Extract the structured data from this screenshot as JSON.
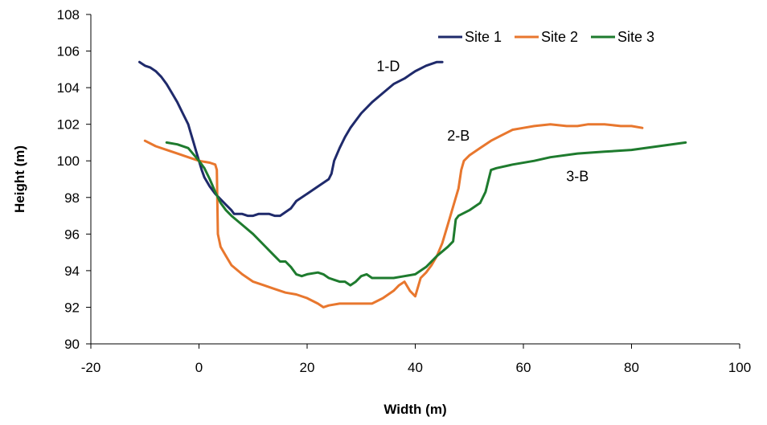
{
  "chart_data": {
    "type": "line",
    "title": "",
    "xlabel": "Width (m)",
    "ylabel": "Height (m)",
    "xlim": [
      -20,
      100
    ],
    "ylim": [
      90,
      108
    ],
    "xticks": [
      -20,
      0,
      20,
      40,
      60,
      80,
      100
    ],
    "yticks": [
      90,
      92,
      94,
      96,
      98,
      100,
      102,
      104,
      106,
      108
    ],
    "grid": false,
    "legend_position": "top-right",
    "series": [
      {
        "name": "Site 1",
        "color": "#1F2A6B",
        "points": [
          [
            -11,
            105.4
          ],
          [
            -10,
            105.2
          ],
          [
            -9,
            105.1
          ],
          [
            -8,
            104.9
          ],
          [
            -7,
            104.6
          ],
          [
            -6,
            104.2
          ],
          [
            -5,
            103.7
          ],
          [
            -4,
            103.2
          ],
          [
            -3,
            102.6
          ],
          [
            -2,
            102.0
          ],
          [
            -1.5,
            101.5
          ],
          [
            -1,
            101.0
          ],
          [
            -0.5,
            100.5
          ],
          [
            0,
            100.0
          ],
          [
            0.5,
            99.5
          ],
          [
            1,
            99.1
          ],
          [
            2,
            98.6
          ],
          [
            3,
            98.2
          ],
          [
            4,
            97.9
          ],
          [
            5,
            97.6
          ],
          [
            6,
            97.3
          ],
          [
            6.5,
            97.1
          ],
          [
            8,
            97.1
          ],
          [
            9,
            97.0
          ],
          [
            10,
            97.0
          ],
          [
            11,
            97.1
          ],
          [
            12,
            97.1
          ],
          [
            13,
            97.1
          ],
          [
            14,
            97.0
          ],
          [
            15,
            97.0
          ],
          [
            16,
            97.2
          ],
          [
            17,
            97.4
          ],
          [
            18,
            97.8
          ],
          [
            20,
            98.2
          ],
          [
            22,
            98.6
          ],
          [
            24,
            99.0
          ],
          [
            24.5,
            99.3
          ],
          [
            25,
            100.0
          ],
          [
            26,
            100.7
          ],
          [
            27,
            101.3
          ],
          [
            28,
            101.8
          ],
          [
            29,
            102.2
          ],
          [
            30,
            102.6
          ],
          [
            32,
            103.2
          ],
          [
            34,
            103.7
          ],
          [
            36,
            104.2
          ],
          [
            38,
            104.5
          ],
          [
            40,
            104.9
          ],
          [
            42,
            105.2
          ],
          [
            44,
            105.4
          ],
          [
            45,
            105.4
          ]
        ]
      },
      {
        "name": "Site 2",
        "color": "#E8772E",
        "points": [
          [
            -10,
            101.1
          ],
          [
            -8,
            100.8
          ],
          [
            -6,
            100.6
          ],
          [
            -4,
            100.4
          ],
          [
            -2,
            100.2
          ],
          [
            0,
            100.0
          ],
          [
            2,
            99.9
          ],
          [
            3,
            99.8
          ],
          [
            3.3,
            99.5
          ],
          [
            3.5,
            96.0
          ],
          [
            4,
            95.3
          ],
          [
            5,
            94.8
          ],
          [
            6,
            94.3
          ],
          [
            8,
            93.8
          ],
          [
            10,
            93.4
          ],
          [
            12,
            93.2
          ],
          [
            14,
            93.0
          ],
          [
            16,
            92.8
          ],
          [
            18,
            92.7
          ],
          [
            20,
            92.5
          ],
          [
            22,
            92.2
          ],
          [
            23,
            92.0
          ],
          [
            24,
            92.1
          ],
          [
            26,
            92.2
          ],
          [
            28,
            92.2
          ],
          [
            30,
            92.2
          ],
          [
            32,
            92.2
          ],
          [
            34,
            92.5
          ],
          [
            36,
            92.9
          ],
          [
            37,
            93.2
          ],
          [
            38,
            93.4
          ],
          [
            39,
            92.9
          ],
          [
            40,
            92.6
          ],
          [
            41,
            93.6
          ],
          [
            42,
            93.9
          ],
          [
            43,
            94.3
          ],
          [
            44,
            94.8
          ],
          [
            45,
            95.5
          ],
          [
            46,
            96.5
          ],
          [
            47,
            97.5
          ],
          [
            48,
            98.5
          ],
          [
            48.5,
            99.5
          ],
          [
            49,
            100.0
          ],
          [
            50,
            100.3
          ],
          [
            52,
            100.7
          ],
          [
            54,
            101.1
          ],
          [
            56,
            101.4
          ],
          [
            58,
            101.7
          ],
          [
            60,
            101.8
          ],
          [
            62,
            101.9
          ],
          [
            65,
            102.0
          ],
          [
            68,
            101.9
          ],
          [
            70,
            101.9
          ],
          [
            72,
            102.0
          ],
          [
            75,
            102.0
          ],
          [
            78,
            101.9
          ],
          [
            80,
            101.9
          ],
          [
            82,
            101.8
          ]
        ]
      },
      {
        "name": "Site 3",
        "color": "#1E7B2E",
        "points": [
          [
            -6,
            101.0
          ],
          [
            -4,
            100.9
          ],
          [
            -2,
            100.7
          ],
          [
            0,
            100.0
          ],
          [
            1,
            99.6
          ],
          [
            2,
            99.0
          ],
          [
            3,
            98.3
          ],
          [
            4,
            97.7
          ],
          [
            5,
            97.3
          ],
          [
            6,
            97.0
          ],
          [
            8,
            96.5
          ],
          [
            10,
            96.0
          ],
          [
            12,
            95.4
          ],
          [
            14,
            94.8
          ],
          [
            15,
            94.5
          ],
          [
            16,
            94.5
          ],
          [
            17,
            94.2
          ],
          [
            18,
            93.8
          ],
          [
            19,
            93.7
          ],
          [
            20,
            93.8
          ],
          [
            22,
            93.9
          ],
          [
            23,
            93.8
          ],
          [
            24,
            93.6
          ],
          [
            25,
            93.5
          ],
          [
            26,
            93.4
          ],
          [
            27,
            93.4
          ],
          [
            28,
            93.2
          ],
          [
            29,
            93.4
          ],
          [
            30,
            93.7
          ],
          [
            31,
            93.8
          ],
          [
            32,
            93.6
          ],
          [
            34,
            93.6
          ],
          [
            36,
            93.6
          ],
          [
            38,
            93.7
          ],
          [
            40,
            93.8
          ],
          [
            42,
            94.2
          ],
          [
            44,
            94.8
          ],
          [
            46,
            95.3
          ],
          [
            47,
            95.6
          ],
          [
            47.5,
            96.8
          ],
          [
            48,
            97.0
          ],
          [
            50,
            97.3
          ],
          [
            52,
            97.7
          ],
          [
            53,
            98.3
          ],
          [
            54,
            99.5
          ],
          [
            55,
            99.6
          ],
          [
            58,
            99.8
          ],
          [
            62,
            100.0
          ],
          [
            65,
            100.2
          ],
          [
            70,
            100.4
          ],
          [
            75,
            100.5
          ],
          [
            80,
            100.6
          ],
          [
            85,
            100.8
          ],
          [
            90,
            101.0
          ]
        ]
      }
    ],
    "annotations": [
      {
        "text": "1-D",
        "x": 35,
        "y": 104.9
      },
      {
        "text": "2-B",
        "x": 48,
        "y": 101.1
      },
      {
        "text": "3-B",
        "x": 70,
        "y": 98.9
      }
    ]
  }
}
